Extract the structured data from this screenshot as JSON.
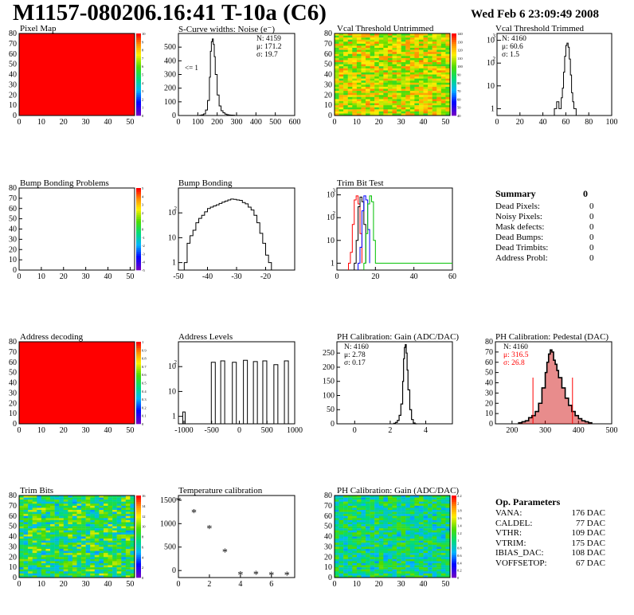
{
  "header": {
    "title": "M1157-080206.16:41 T-10a (C6)",
    "datetime": "Wed Feb  6 23:09:49 2008"
  },
  "panels": {
    "pixel_map": {
      "title": "Pixel Map"
    },
    "scurve": {
      "title": "S-Curve widths: Noise (e⁻)",
      "stats": [
        "N: 4159",
        "μ: 171.2",
        "σ: 19.7"
      ],
      "note": "<= 1"
    },
    "vcal_untrimmed": {
      "title": "Vcal Threshold Untrimmed"
    },
    "vcal_trimmed": {
      "title": "Vcal Threshold Trimmed",
      "stats": [
        "N: 4160",
        "μ: 60.6",
        "σ:  1.5"
      ]
    },
    "bump_problems": {
      "title": "Bump Bonding Problems"
    },
    "bump_bonding": {
      "title": "Bump Bonding"
    },
    "trim_bit_test": {
      "title": "Trim Bit Test"
    },
    "address_decoding": {
      "title": "Address decoding"
    },
    "address_levels": {
      "title": "Address Levels"
    },
    "ph_gain": {
      "title": "PH Calibration: Gain (ADC/DAC)",
      "stats": [
        "N: 4160",
        "μ: 2.78",
        "σ: 0.17"
      ]
    },
    "ph_pedestal": {
      "title": "PH Calibration: Pedestal (DAC)",
      "stats": [
        "N: 4160",
        "μ: 316.5",
        "σ: 26.8"
      ]
    },
    "trim_bits": {
      "title": "Trim Bits"
    },
    "temperature": {
      "title": "Temperature calibration"
    },
    "ph_gain_map": {
      "title": "PH Calibration: Gain (ADC/DAC)"
    }
  },
  "summary": {
    "title": "Summary",
    "total": "0",
    "rows": [
      {
        "label": "Dead Pixels:",
        "value": "0"
      },
      {
        "label": "Noisy Pixels:",
        "value": "0"
      },
      {
        "label": "Mask defects:",
        "value": "0"
      },
      {
        "label": "Dead Bumps:",
        "value": "0"
      },
      {
        "label": "Dead Trimbits:",
        "value": "0"
      },
      {
        "label": "Address Probl:",
        "value": "0"
      }
    ]
  },
  "op_parameters": {
    "title": "Op. Parameters",
    "rows": [
      {
        "label": "VANA:",
        "value": "176 DAC"
      },
      {
        "label": "CALDEL:",
        "value": "77 DAC"
      },
      {
        "label": "VTHR:",
        "value": "109 DAC"
      },
      {
        "label": "VTRIM:",
        "value": "175 DAC"
      },
      {
        "label": "IBIAS_DAC:",
        "value": "108 DAC"
      },
      {
        "label": "VOFFSETOP:",
        "value": "67 DAC"
      }
    ]
  },
  "colors": {
    "red": "#ff0000",
    "green": "#00c000",
    "blue": "#0000ff",
    "pedestal_fill": "#cc0000"
  },
  "chart_data": [
    {
      "id": "pixel_map",
      "type": "heatmap",
      "title": "Pixel Map",
      "xlim": [
        0,
        52
      ],
      "ylim": [
        0,
        80
      ],
      "xticks": [
        0,
        10,
        20,
        30,
        40,
        50
      ],
      "yticks": [
        0,
        10,
        20,
        30,
        40,
        50,
        60,
        70,
        80
      ],
      "fill": "uniform-max",
      "colorbar": [
        0,
        1,
        2,
        3,
        4,
        5,
        6,
        7,
        8,
        9,
        10
      ]
    },
    {
      "id": "scurve",
      "type": "histogram",
      "title": "S-Curve widths: Noise (e⁻)",
      "xlim": [
        0,
        600
      ],
      "ylim": [
        0,
        600
      ],
      "xticks": [
        0,
        100,
        200,
        300,
        400,
        500,
        600
      ],
      "yticks": [
        0,
        100,
        200,
        300,
        400,
        500
      ],
      "bins": [
        [
          100,
          0
        ],
        [
          110,
          2
        ],
        [
          120,
          5
        ],
        [
          130,
          12
        ],
        [
          140,
          40
        ],
        [
          150,
          110
        ],
        [
          160,
          280
        ],
        [
          165,
          470
        ],
        [
          170,
          540
        ],
        [
          175,
          560
        ],
        [
          180,
          520
        ],
        [
          185,
          430
        ],
        [
          190,
          300
        ],
        [
          200,
          150
        ],
        [
          210,
          70
        ],
        [
          220,
          35
        ],
        [
          230,
          20
        ],
        [
          240,
          10
        ],
        [
          250,
          6
        ],
        [
          260,
          4
        ],
        [
          270,
          3
        ],
        [
          280,
          2
        ],
        [
          290,
          0
        ]
      ]
    },
    {
      "id": "vcal_untrimmed",
      "type": "heatmap",
      "title": "Vcal Threshold Untrimmed",
      "xlim": [
        0,
        52
      ],
      "ylim": [
        0,
        80
      ],
      "xticks": [
        0,
        10,
        20,
        30,
        40,
        50
      ],
      "yticks": [
        0,
        10,
        20,
        30,
        40,
        50,
        60,
        70,
        80
      ],
      "fill": "noise-orange",
      "colorbar": [
        40,
        50,
        60,
        70,
        80,
        90,
        100,
        110,
        120,
        130,
        140
      ]
    },
    {
      "id": "vcal_trimmed",
      "type": "histogram",
      "title": "Vcal Threshold Trimmed",
      "log": true,
      "xlim": [
        0,
        100
      ],
      "ylim": [
        0.5,
        2000
      ],
      "xticks": [
        0,
        20,
        40,
        60,
        80,
        100
      ],
      "ylogticks": [
        1,
        10,
        100,
        1000
      ],
      "bins": [
        [
          50,
          1
        ],
        [
          52,
          2
        ],
        [
          54,
          1
        ],
        [
          56,
          3
        ],
        [
          57,
          8
        ],
        [
          58,
          40
        ],
        [
          59,
          200
        ],
        [
          60,
          600
        ],
        [
          61,
          750
        ],
        [
          62,
          500
        ],
        [
          63,
          150
        ],
        [
          64,
          30
        ],
        [
          65,
          5
        ],
        [
          66,
          2
        ],
        [
          67,
          1
        ]
      ]
    },
    {
      "id": "bump_problems",
      "type": "heatmap",
      "title": "Bump Bonding Problems",
      "xlim": [
        0,
        52
      ],
      "ylim": [
        0,
        80
      ],
      "xticks": [
        0,
        10,
        20,
        30,
        40,
        50
      ],
      "yticks": [
        0,
        10,
        20,
        30,
        40,
        50,
        60,
        70,
        80
      ],
      "fill": "empty",
      "colorbar": [
        -5,
        -4,
        -3,
        -2,
        -1,
        0,
        1,
        2,
        3,
        4,
        5
      ]
    },
    {
      "id": "bump_bonding",
      "type": "histogram",
      "title": "Bump Bonding",
      "log": true,
      "xlim": [
        -50,
        -10
      ],
      "ylim": [
        0.5,
        1000
      ],
      "xticks": [
        -50,
        -40,
        -30,
        -20
      ],
      "ylogticks": [
        1,
        10,
        100
      ],
      "bins": [
        [
          -48,
          1
        ],
        [
          -47,
          6
        ],
        [
          -46,
          12
        ],
        [
          -45,
          20
        ],
        [
          -44,
          40
        ],
        [
          -43,
          60
        ],
        [
          -42,
          80
        ],
        [
          -41,
          110
        ],
        [
          -40,
          150
        ],
        [
          -39,
          170
        ],
        [
          -38,
          190
        ],
        [
          -37,
          210
        ],
        [
          -36,
          240
        ],
        [
          -35,
          270
        ],
        [
          -34,
          300
        ],
        [
          -33,
          330
        ],
        [
          -32,
          360
        ],
        [
          -31,
          350
        ],
        [
          -30,
          330
        ],
        [
          -29,
          320
        ],
        [
          -28,
          260
        ],
        [
          -27,
          230
        ],
        [
          -26,
          170
        ],
        [
          -25,
          130
        ],
        [
          -24,
          80
        ],
        [
          -23,
          40
        ],
        [
          -22,
          15
        ],
        [
          -21,
          6
        ],
        [
          -20,
          2
        ],
        [
          -19,
          1
        ]
      ]
    },
    {
      "id": "trim_bit_test",
      "type": "line",
      "title": "Trim Bit Test",
      "log": true,
      "xlim": [
        0,
        60
      ],
      "ylim": [
        0.5,
        2000
      ],
      "xticks": [
        0,
        20,
        40,
        60
      ],
      "ylogticks": [
        1,
        10,
        100,
        1000
      ],
      "series": [
        {
          "color": "#ff0000",
          "x": [
            6,
            7,
            8,
            9,
            10,
            11,
            12,
            13
          ],
          "y": [
            1,
            3,
            50,
            600,
            900,
            400,
            20,
            1
          ]
        },
        {
          "color": "#000000",
          "x": [
            9,
            10,
            11,
            12,
            13,
            14,
            15
          ],
          "y": [
            1,
            10,
            300,
            800,
            500,
            50,
            1
          ]
        },
        {
          "color": "#0000ff",
          "x": [
            11,
            12,
            13,
            14,
            15,
            16,
            17
          ],
          "y": [
            1,
            5,
            200,
            900,
            600,
            30,
            1
          ]
        },
        {
          "color": "#00c000",
          "x": [
            14,
            15,
            16,
            17,
            18,
            19,
            20,
            60
          ],
          "y": [
            1,
            20,
            400,
            900,
            500,
            10,
            1,
            1
          ]
        }
      ]
    },
    {
      "id": "address_decoding",
      "type": "heatmap",
      "title": "Address decoding",
      "xlim": [
        0,
        52
      ],
      "ylim": [
        0,
        80
      ],
      "xticks": [
        0,
        10,
        20,
        30,
        40,
        50
      ],
      "yticks": [
        0,
        10,
        20,
        30,
        40,
        50,
        60,
        70,
        80
      ],
      "fill": "uniform-max",
      "colorbar": [
        0,
        0.1,
        0.2,
        0.3,
        0.4,
        0.5,
        0.6,
        0.7,
        0.8,
        0.9,
        1
      ]
    },
    {
      "id": "address_levels",
      "type": "histogram",
      "title": "Address Levels",
      "log": true,
      "xlim": [
        -1100,
        1000
      ],
      "ylim": [
        0.5,
        1000
      ],
      "xticks": [
        -1000,
        -500,
        0,
        500,
        1000
      ],
      "ylogticks": [
        1,
        10,
        100
      ],
      "peaks": [
        [
          -1000,
          1.5
        ],
        [
          -470,
          150
        ],
        [
          -300,
          170
        ],
        [
          -90,
          150
        ],
        [
          110,
          180
        ],
        [
          290,
          160
        ],
        [
          460,
          170
        ],
        [
          660,
          120
        ],
        [
          850,
          170
        ]
      ]
    },
    {
      "id": "ph_gain",
      "type": "histogram",
      "title": "PH Calibration: Gain (ADC/DAC)",
      "xlim": [
        -1,
        5.5
      ],
      "ylim": [
        0,
        290
      ],
      "xticks": [
        0,
        2,
        4
      ],
      "yticks": [
        0,
        50,
        100,
        150,
        200,
        250
      ],
      "bins": [
        [
          2.2,
          2
        ],
        [
          2.3,
          5
        ],
        [
          2.4,
          12
        ],
        [
          2.5,
          30
        ],
        [
          2.6,
          70
        ],
        [
          2.7,
          150
        ],
        [
          2.75,
          230
        ],
        [
          2.8,
          270
        ],
        [
          2.85,
          280
        ],
        [
          2.9,
          250
        ],
        [
          2.95,
          190
        ],
        [
          3.0,
          120
        ],
        [
          3.1,
          50
        ],
        [
          3.2,
          15
        ],
        [
          3.3,
          3
        ],
        [
          3.4,
          0
        ]
      ]
    },
    {
      "id": "ph_pedestal",
      "type": "histogram",
      "title": "PH Calibration: Pedestal (DAC)",
      "xlim": [
        150,
        500
      ],
      "ylim": [
        0,
        80
      ],
      "xticks": [
        200,
        300,
        400,
        500
      ],
      "yticks": [
        0,
        10,
        20,
        30,
        40,
        50,
        60,
        70,
        80
      ],
      "fit_range": [
        263,
        382
      ],
      "bins": [
        [
          220,
          1
        ],
        [
          230,
          2
        ],
        [
          240,
          3
        ],
        [
          250,
          6
        ],
        [
          260,
          8
        ],
        [
          270,
          12
        ],
        [
          280,
          20
        ],
        [
          290,
          35
        ],
        [
          300,
          50
        ],
        [
          305,
          60
        ],
        [
          310,
          68
        ],
        [
          315,
          72
        ],
        [
          320,
          70
        ],
        [
          325,
          62
        ],
        [
          330,
          58
        ],
        [
          335,
          52
        ],
        [
          340,
          45
        ],
        [
          350,
          35
        ],
        [
          360,
          25
        ],
        [
          370,
          18
        ],
        [
          380,
          12
        ],
        [
          390,
          8
        ],
        [
          400,
          5
        ],
        [
          410,
          3
        ],
        [
          420,
          2
        ],
        [
          430,
          1
        ]
      ]
    },
    {
      "id": "trim_bits",
      "type": "heatmap",
      "title": "Trim Bits",
      "xlim": [
        0,
        52
      ],
      "ylim": [
        0,
        80
      ],
      "xticks": [
        0,
        10,
        20,
        30,
        40,
        50
      ],
      "yticks": [
        0,
        10,
        20,
        30,
        40,
        50,
        60,
        70,
        80
      ],
      "fill": "noise-green",
      "colorbar": [
        0,
        2,
        4,
        6,
        8,
        10,
        12,
        14,
        16
      ]
    },
    {
      "id": "temperature",
      "type": "scatter",
      "title": "Temperature calibration",
      "xlim": [
        0,
        7.5
      ],
      "ylim": [
        -150,
        1600
      ],
      "xticks": [
        0,
        2,
        4,
        6
      ],
      "yticks": [
        0,
        500,
        1000,
        1500
      ],
      "x": [
        0,
        1,
        2,
        3,
        4,
        5,
        6,
        7
      ],
      "y": [
        1500,
        1240,
        900,
        400,
        -80,
        -70,
        -90,
        -90
      ]
    },
    {
      "id": "ph_gain_map",
      "type": "heatmap",
      "title": "PH Calibration: Gain (ADC/DAC)",
      "xlim": [
        0,
        52
      ],
      "ylim": [
        0,
        80
      ],
      "xticks": [
        0,
        10,
        20,
        30,
        40,
        50
      ],
      "yticks": [
        0,
        10,
        20,
        30,
        40,
        50,
        60,
        70,
        80
      ],
      "fill": "noise-green2",
      "colorbar": [
        0,
        0.2,
        0.4,
        0.6,
        0.8,
        1,
        1.2,
        1.4,
        1.6,
        1.8,
        2,
        2.2
      ]
    }
  ]
}
